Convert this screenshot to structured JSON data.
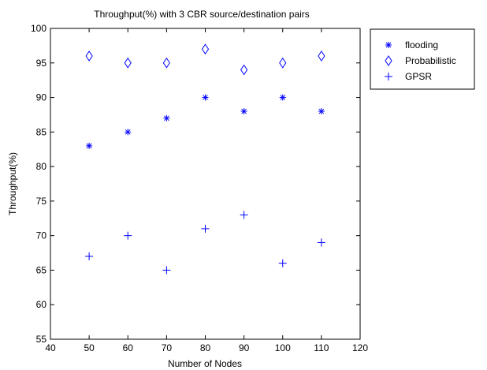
{
  "chart_data": {
    "type": "scatter",
    "title": "Throughput(%) with 3 CBR source/destination pairs",
    "xlabel": "Number of Nodes",
    "ylabel": "Throughput(%)",
    "xlim": [
      40,
      120
    ],
    "ylim": [
      55,
      100
    ],
    "xticks": [
      40,
      50,
      60,
      70,
      80,
      90,
      100,
      110,
      120
    ],
    "yticks": [
      55,
      60,
      65,
      70,
      75,
      80,
      85,
      90,
      95,
      100
    ],
    "grid": false,
    "legend_position": "outside-top-right",
    "marker_color": "#0000ff",
    "series": [
      {
        "name": "flooding",
        "marker": "asterisk",
        "x": [
          50,
          60,
          70,
          80,
          90,
          100,
          110
        ],
        "y": [
          83,
          85,
          87,
          90,
          88,
          90,
          88
        ]
      },
      {
        "name": "Probabilistic",
        "marker": "diamond",
        "x": [
          50,
          60,
          70,
          80,
          90,
          100,
          110
        ],
        "y": [
          96,
          95,
          95,
          97,
          94,
          95,
          96
        ]
      },
      {
        "name": "GPSR",
        "marker": "plus",
        "x": [
          50,
          60,
          70,
          80,
          90,
          100,
          110
        ],
        "y": [
          67,
          70,
          65,
          71,
          73,
          66,
          69
        ]
      }
    ]
  }
}
